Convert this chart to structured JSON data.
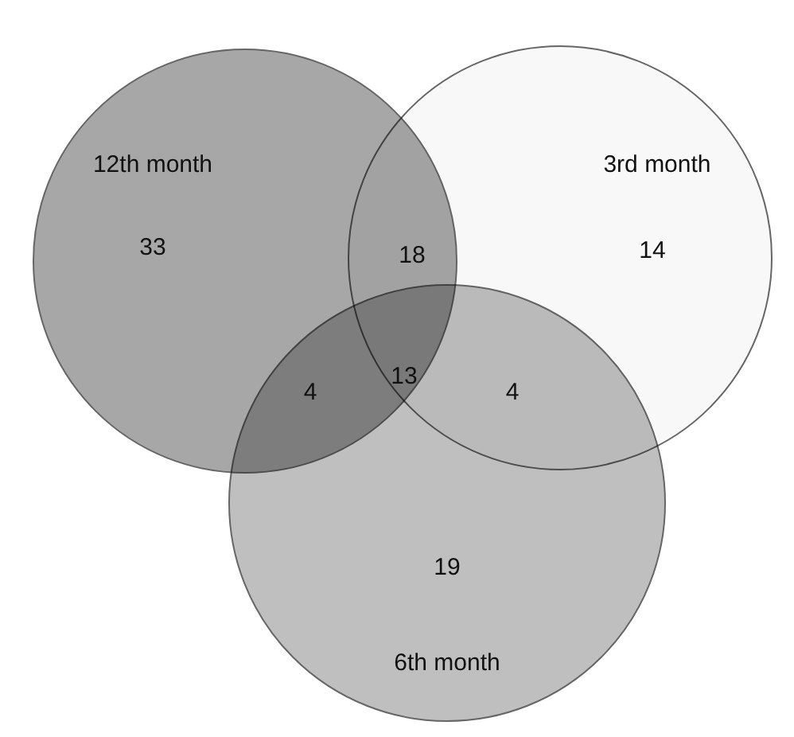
{
  "chart_data": {
    "type": "other",
    "categories": [
      "12th month",
      "3rd month",
      "6th month"
    ],
    "values": [
      33,
      14,
      19
    ],
    "colors": [
      "#8a8a8a",
      "#f2f2f2",
      "#a9a9a9"
    ],
    "annotations": [
      "18",
      "4",
      "4",
      "13"
    ],
    "data_labels": true
  }
}
